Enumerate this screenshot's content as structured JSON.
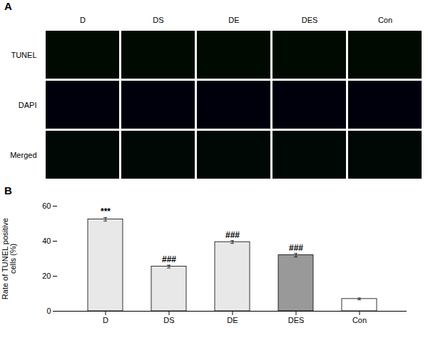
{
  "chart_data": [
    {
      "type": "image_grid",
      "title": "A",
      "categories": [
        "D",
        "DS",
        "DE",
        "DES",
        "Con"
      ],
      "rows": [
        "TUNEL",
        "DAPI",
        "Merged"
      ],
      "colors": [
        "#000a00",
        "#00000d",
        "#000805"
      ]
    },
    {
      "type": "bar",
      "title": "B",
      "categories": [
        "D",
        "DS",
        "DE",
        "DES",
        "Con"
      ],
      "values": [
        52.5,
        25.5,
        39.5,
        32.0,
        7.0
      ],
      "errors": [
        1.0,
        0.8,
        0.8,
        1.0,
        0.5
      ],
      "colors": [
        "#e8e8e8",
        "#e8e8e8",
        "#e8e8e8",
        "#999999",
        "#ffffff"
      ],
      "annotations": [
        "***",
        "###",
        "###",
        "###",
        null
      ],
      "ylabel": "Rate of TUNEL positive\ncells (%)",
      "ylim": [
        0,
        60
      ],
      "yticks": [
        0,
        20,
        40,
        60
      ]
    }
  ]
}
